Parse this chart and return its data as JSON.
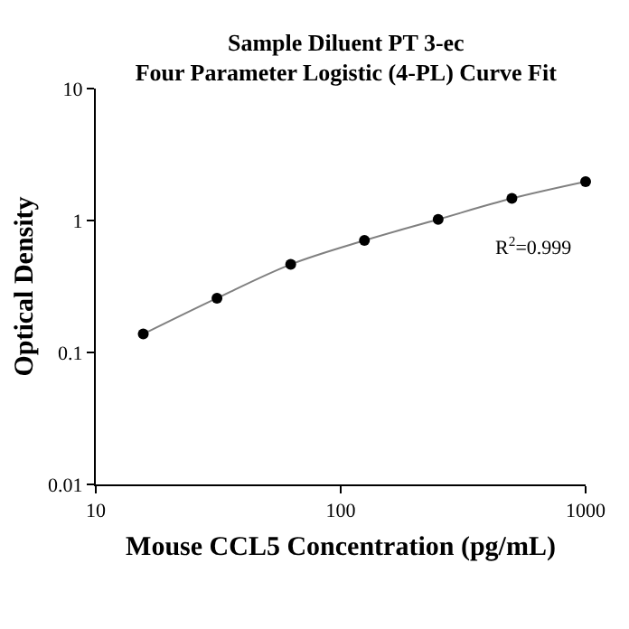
{
  "chart_data": {
    "type": "scatter",
    "title": "Sample Diluent PT 3-ec\nFour Parameter Logistic (4-PL) Curve Fit",
    "xlabel": "Mouse CCL5 Concentration (pg/mL)",
    "ylabel": "Optical Density",
    "log": "xy",
    "marker": "circle",
    "x": [
      15.625,
      31.25,
      62.5,
      125,
      250,
      500,
      1000
    ],
    "series": [
      {
        "type": "line",
        "color": "#808080",
        "marker": "none",
        "values": [
          0.138,
          0.258,
          0.465,
          0.706,
          1.02,
          1.47,
          1.97
        ]
      },
      {
        "color": "#000000",
        "values": [
          0.138,
          0.258,
          0.465,
          0.706,
          1.02,
          1.47,
          1.97
        ]
      }
    ],
    "xlim": [
      10,
      1000
    ],
    "xticks": [
      10,
      100,
      1000
    ],
    "ylim": [
      0.01,
      10
    ],
    "yticks": [
      0.01,
      0.1,
      1,
      10
    ],
    "annotations": [
      "R$^{2}$=0.999"
    ]
  }
}
